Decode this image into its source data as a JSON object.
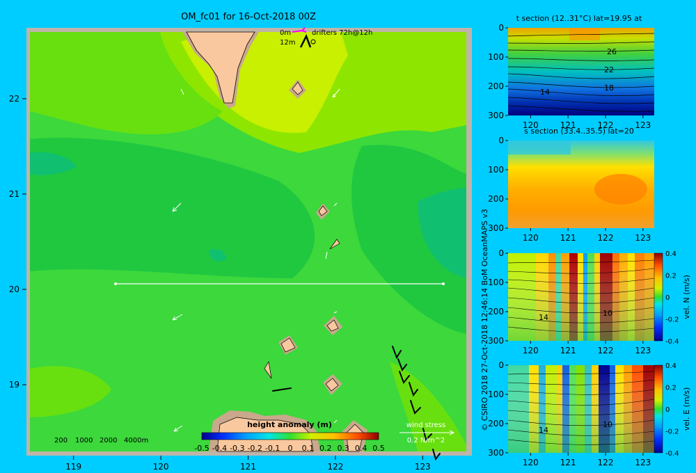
{
  "colors": {
    "background": "#00cdff",
    "land": "#f9c89e",
    "land_shadow": "#c9a88c",
    "border": "#c0b4a8"
  },
  "chart_data": [
    {
      "type": "heatmap",
      "title": "OM_fc01 for 16-Oct-2018 00Z",
      "x_ticks": [
        "119",
        "120",
        "121",
        "122",
        "123"
      ],
      "y_ticks": [
        "22",
        "21",
        "20",
        "19"
      ],
      "xlim": [
        118.5,
        123.5
      ],
      "ylim": [
        18.3,
        22.7
      ],
      "section_line": {
        "lat": 20,
        "lon": [
          119.5,
          123.2
        ]
      },
      "legend_drifters": {
        "labels": [
          "0m",
          "12m"
        ],
        "text": "drifters 72h@12h"
      },
      "depth_legend": [
        "200",
        "1000",
        "2000",
        "4000m"
      ],
      "colorbar": {
        "label": "height anomaly (m)",
        "ticks": [
          "-0.5",
          "-0.4",
          "-0.3",
          "-0.2",
          "-0.1",
          "0",
          "0.1",
          "0.2",
          "0.3",
          "0.4",
          "0.5"
        ],
        "range": [
          -0.5,
          0.5
        ]
      },
      "wind_stress": {
        "label": "wind stress",
        "scale": "0.2 N/m^2"
      }
    },
    {
      "type": "heatmap",
      "title": "t section (12..31°C) lat=19.95 at",
      "x_ticks": [
        "120",
        "121",
        "122",
        "123"
      ],
      "y_ticks": [
        "0",
        "100",
        "200",
        "300"
      ],
      "contour_labels": [
        "26",
        "22",
        "18",
        "14"
      ]
    },
    {
      "type": "heatmap",
      "title": "s section (33.4..35.5) lat=20",
      "x_ticks": [
        "120",
        "121",
        "122",
        "123"
      ],
      "y_ticks": [
        "0",
        "100",
        "200",
        "300"
      ]
    },
    {
      "type": "heatmap",
      "x_ticks": [
        "120",
        "121",
        "122",
        "123"
      ],
      "y_ticks": [
        "0",
        "100",
        "200",
        "300"
      ],
      "contour_labels": [
        "14",
        "10"
      ],
      "colorbar": {
        "label": "vel. N (m/s)",
        "ticks": [
          "0.4",
          "0.2",
          "0",
          "-0.2",
          "-0.4"
        ],
        "range": [
          -0.4,
          0.4
        ]
      }
    },
    {
      "type": "heatmap",
      "x_ticks": [
        "120",
        "121",
        "122",
        "123"
      ],
      "y_ticks": [
        "0",
        "100",
        "200",
        "300"
      ],
      "contour_labels": [
        "14",
        "10"
      ],
      "colorbar": {
        "label": "vel. E (m/s)",
        "ticks": [
          "0.4",
          "0.2",
          "0",
          "-0.2",
          "-0.4"
        ],
        "range": [
          -0.4,
          0.4
        ]
      }
    }
  ],
  "credit": "© CSIRO 2018  27-Oct-2018 12:46:14 BoM OceanMAPS v3"
}
